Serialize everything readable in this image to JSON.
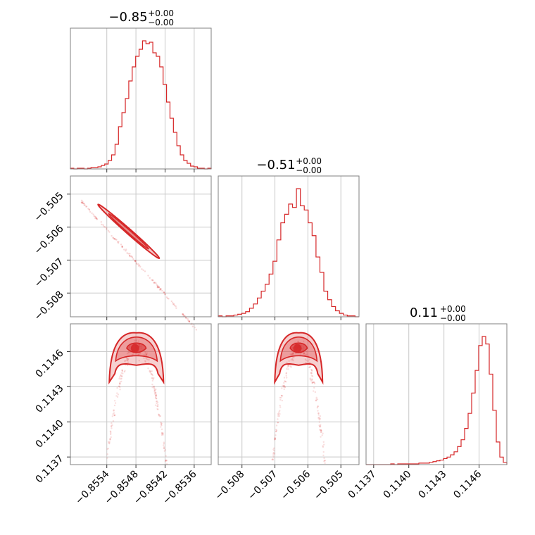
{
  "chart_data": {
    "type": "corner",
    "color": "#d62728",
    "parameters": [
      {
        "title": "−0.85",
        "plus": "+0.00",
        "minus": "−0.00"
      },
      {
        "title": "−0.51",
        "plus": "+0.00",
        "minus": "−0.00"
      },
      {
        "title": "0.11",
        "plus": "+0.00",
        "minus": "−0.00"
      }
    ],
    "axes": [
      {
        "range": [
          -0.85615,
          -0.85325
        ],
        "ticks": [
          -0.8554,
          -0.8548,
          -0.8542,
          -0.8536
        ],
        "tick_labels": [
          "−0.8554",
          "−0.8548",
          "−0.8542",
          "−0.8536"
        ]
      },
      {
        "range": [
          -0.50872,
          -0.50445
        ],
        "ticks": [
          -0.508,
          -0.507,
          -0.506,
          -0.505
        ],
        "tick_labels": [
          "−0.508",
          "−0.507",
          "−0.506",
          "−0.505"
        ]
      },
      {
        "range": [
          0.113635,
          0.114837
        ],
        "ticks": [
          0.1137,
          0.114,
          0.1143,
          0.1146
        ],
        "tick_labels": [
          "0.1137",
          "0.1140",
          "0.1143",
          "0.1146"
        ]
      }
    ],
    "histograms": [
      {
        "counts": [
          1,
          0,
          1,
          1,
          0,
          1,
          2,
          2,
          3,
          5,
          7,
          12,
          20,
          35,
          60,
          80,
          100,
          125,
          145,
          160,
          170,
          182,
          178,
          180,
          165,
          160,
          145,
          120,
          95,
          72,
          52,
          33,
          20,
          12,
          8,
          4,
          3,
          1,
          1,
          0,
          1
        ]
      },
      {
        "counts": [
          1,
          0,
          1,
          1,
          2,
          3,
          4,
          6,
          10,
          15,
          22,
          30,
          38,
          50,
          65,
          90,
          110,
          120,
          132,
          128,
          150,
          130,
          125,
          110,
          95,
          70,
          52,
          30,
          20,
          12,
          7,
          4,
          2,
          1,
          1,
          0
        ]
      },
      {
        "counts": [
          0,
          0,
          0,
          0,
          0,
          0,
          0,
          1,
          0,
          1,
          1,
          1,
          1,
          1,
          1,
          2,
          2,
          2,
          3,
          4,
          5,
          6,
          8,
          10,
          13,
          17,
          24,
          33,
          48,
          68,
          95,
          125,
          158,
          170,
          160,
          120,
          72,
          30,
          10,
          3
        ]
      }
    ],
    "grid": true
  }
}
